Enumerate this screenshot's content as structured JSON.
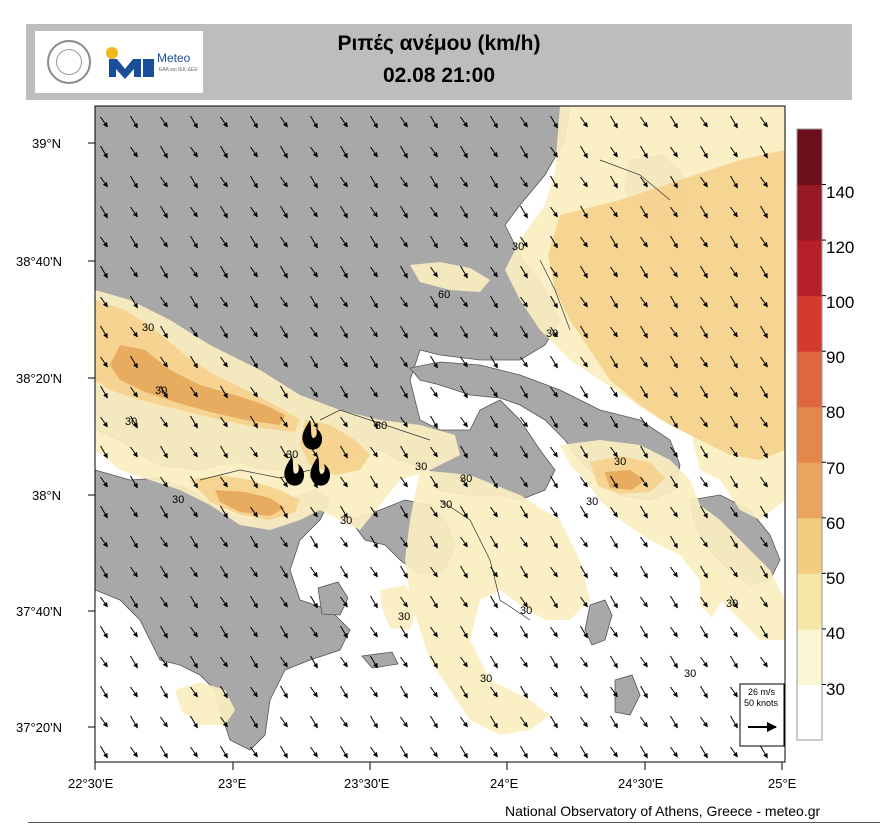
{
  "header": {
    "title": "Ριπές ανέμου (km/h)",
    "datetime": "02.08 21:00",
    "logo_text": "Meteo",
    "logo_subtitle": "ΕΑΑ και ΙΕΚ-ΔΕΕ"
  },
  "map": {
    "lat_labels": [
      "39°N",
      "38°40'N",
      "38°20'N",
      "38°N",
      "37°40'N",
      "37°20'N"
    ],
    "lon_labels": [
      "22°30'E",
      "23°E",
      "23°30'E",
      "24°E",
      "24°30'E",
      "25°E"
    ],
    "contour_labels": [
      "30",
      "30",
      "30",
      "30",
      "60",
      "30",
      "30",
      "30",
      "30",
      "30",
      "30",
      "30",
      "30",
      "30",
      "30",
      "30",
      "30",
      "30",
      "30",
      "30"
    ],
    "colors": {
      "land": "#a8a8a8",
      "sea": "#ffffff",
      "gust_30_40": "#fbefc0",
      "gust_40_50": "#f5d28e",
      "gust_50_60": "#e7aa5e"
    },
    "fire_icons": [
      "flame-icon",
      "flame-icon",
      "flame-icon"
    ],
    "reference_vector": {
      "speed_ms": "26 m/s",
      "speed_knots": "50 knots"
    }
  },
  "legend": {
    "labels": [
      "140",
      "120",
      "100",
      "90",
      "80",
      "70",
      "60",
      "50",
      "40",
      "30"
    ],
    "colors": [
      "#ffffff",
      "#fbf7d4",
      "#f7e7a6",
      "#f2cd7e",
      "#eaa45e",
      "#e4874a",
      "#de6640",
      "#d23b2e",
      "#b81f28",
      "#981825",
      "#6d0e1c"
    ]
  },
  "footer": {
    "credit": "National Observatory of Athens, Greece - meteo.gr"
  }
}
